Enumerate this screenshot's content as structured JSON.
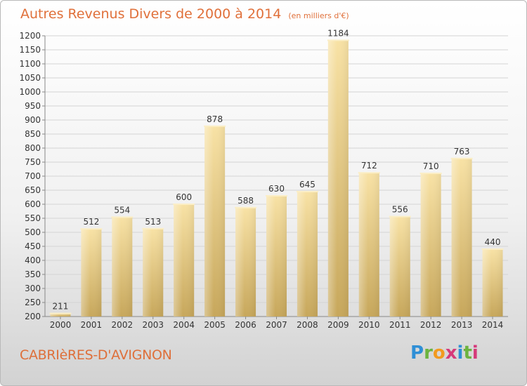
{
  "title": {
    "main": "Autres Revenus Divers de 2000 à 2014",
    "unit": "(en milliers d'€)"
  },
  "commune": "CABRIèRES-D'AVIGNON",
  "logo": {
    "text": "Proxiti",
    "colors": [
      "#2f8fd6",
      "#6cb33f",
      "#f29a1f",
      "#d53a7a"
    ]
  },
  "colors": {
    "title": "#e0703a",
    "bar_light": "#f7dfa0",
    "bar_dark": "#c9a95c",
    "grid": "#cfcfcf",
    "text": "#333333"
  },
  "chart_data": {
    "type": "bar",
    "categories": [
      "2000",
      "2001",
      "2002",
      "2003",
      "2004",
      "2005",
      "2006",
      "2007",
      "2008",
      "2009",
      "2010",
      "2011",
      "2012",
      "2013",
      "2014"
    ],
    "values": [
      211,
      512,
      554,
      513,
      600,
      878,
      588,
      630,
      645,
      1184,
      712,
      556,
      710,
      763,
      440
    ],
    "ylim": [
      200,
      1200
    ],
    "ytick_step": 50,
    "yticks": [
      "200",
      "250",
      "300",
      "350",
      "400",
      "450",
      "500",
      "550",
      "600",
      "650",
      "700",
      "750",
      "800",
      "850",
      "900",
      "950",
      "1000",
      "1050",
      "1100",
      "1150",
      "1200"
    ],
    "grid": true,
    "data_labels": true
  }
}
